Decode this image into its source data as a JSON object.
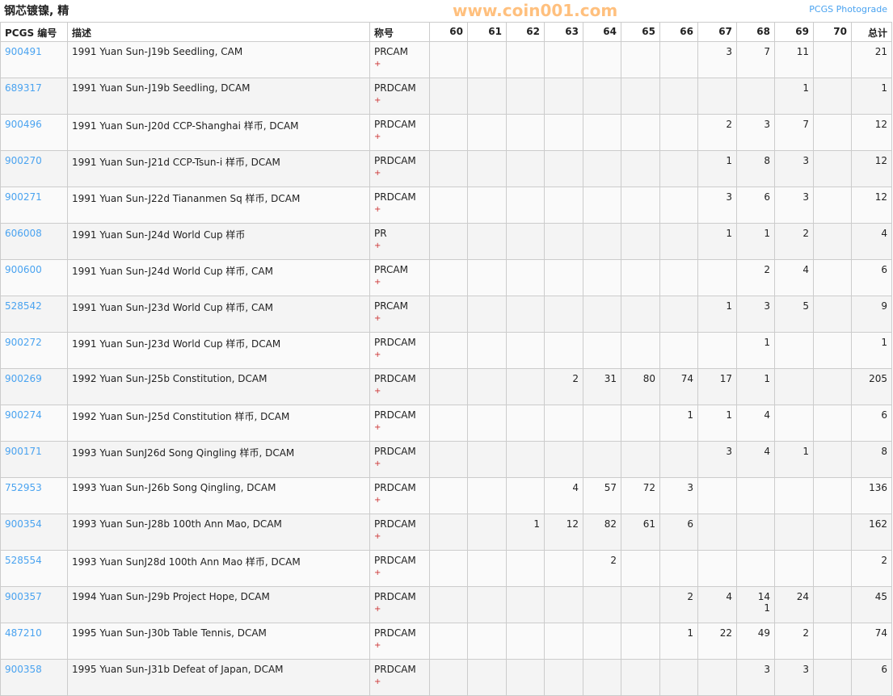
{
  "title": "钢芯镀镍, 精",
  "photograde_link": "PCGS Photograde",
  "headers": [
    "PCGS 编号",
    "描述",
    "称号",
    "60",
    "61",
    "62",
    "63",
    "64",
    "65",
    "66",
    "67",
    "68",
    "69",
    "70",
    "总计"
  ],
  "watermark": "www.coin001.com",
  "rows": [
    {
      "pcgs": "900491",
      "desc": "1991 Yuan Sun-J19b Seedling, CAM",
      "des": "PRCAM",
      "plus": "+",
      "g": [
        "",
        "",
        "",
        "",
        "",
        "",
        "",
        "3",
        "7",
        "11",
        ""
      ],
      "total": "21"
    },
    {
      "pcgs": "689317",
      "desc": "1991 Yuan Sun-J19b Seedling, DCAM",
      "des": "PRDCAM",
      "plus": "+",
      "g": [
        "",
        "",
        "",
        "",
        "",
        "",
        "",
        "",
        "",
        "1",
        ""
      ],
      "total": "1"
    },
    {
      "pcgs": "900496",
      "desc": "1991 Yuan Sun-J20d CCP-Shanghai 样币, DCAM",
      "des": "PRDCAM",
      "plus": "+",
      "g": [
        "",
        "",
        "",
        "",
        "",
        "",
        "",
        "2",
        "3",
        "7",
        ""
      ],
      "total": "12"
    },
    {
      "pcgs": "900270",
      "desc": "1991 Yuan Sun-J21d CCP-Tsun-i 样币, DCAM",
      "des": "PRDCAM",
      "plus": "+",
      "g": [
        "",
        "",
        "",
        "",
        "",
        "",
        "",
        "1",
        "8",
        "3",
        ""
      ],
      "total": "12"
    },
    {
      "pcgs": "900271",
      "desc": "1991 Yuan Sun-J22d Tiananmen Sq 样币, DCAM",
      "des": "PRDCAM",
      "plus": "+",
      "g": [
        "",
        "",
        "",
        "",
        "",
        "",
        "",
        "3",
        "6",
        "3",
        ""
      ],
      "total": "12"
    },
    {
      "pcgs": "606008",
      "desc": "1991 Yuan Sun-J24d World Cup 样币",
      "des": "PR",
      "plus": "+",
      "g": [
        "",
        "",
        "",
        "",
        "",
        "",
        "",
        "1",
        "1",
        "2",
        ""
      ],
      "total": "4"
    },
    {
      "pcgs": "900600",
      "desc": "1991 Yuan Sun-J24d World Cup 样币, CAM",
      "des": "PRCAM",
      "plus": "+",
      "g": [
        "",
        "",
        "",
        "",
        "",
        "",
        "",
        "",
        "2",
        "4",
        ""
      ],
      "total": "6"
    },
    {
      "pcgs": "528542",
      "desc": "1991 Yuan Sun-J23d World Cup 样币, CAM",
      "des": "PRCAM",
      "plus": "+",
      "g": [
        "",
        "",
        "",
        "",
        "",
        "",
        "",
        "1",
        "3",
        "5",
        ""
      ],
      "total": "9"
    },
    {
      "pcgs": "900272",
      "desc": "1991 Yuan Sun-J23d World Cup 样币, DCAM",
      "des": "PRDCAM",
      "plus": "+",
      "g": [
        "",
        "",
        "",
        "",
        "",
        "",
        "",
        "",
        "1",
        "",
        ""
      ],
      "total": "1"
    },
    {
      "pcgs": "900269",
      "desc": "1992 Yuan Sun-J25b Constitution, DCAM",
      "des": "PRDCAM",
      "plus": "+",
      "g": [
        "",
        "",
        "",
        "2",
        "31",
        "80",
        "74",
        "17",
        "1",
        "",
        ""
      ],
      "total": "205"
    },
    {
      "pcgs": "900274",
      "desc": "1992 Yuan Sun-J25d Constitution 样币, DCAM",
      "des": "PRDCAM",
      "plus": "+",
      "g": [
        "",
        "",
        "",
        "",
        "",
        "",
        "1",
        "1",
        "4",
        "",
        ""
      ],
      "total": "6"
    },
    {
      "pcgs": "900171",
      "desc": "1993 Yuan SunJ26d Song Qingling 样币, DCAM",
      "des": "PRDCAM",
      "plus": "+",
      "g": [
        "",
        "",
        "",
        "",
        "",
        "",
        "",
        "3",
        "4",
        "1",
        ""
      ],
      "total": "8"
    },
    {
      "pcgs": "752953",
      "desc": "1993 Yuan Sun-J26b Song Qingling, DCAM",
      "des": "PRDCAM",
      "plus": "+",
      "g": [
        "",
        "",
        "",
        "4",
        "57",
        "72",
        "3",
        "",
        "",
        "",
        ""
      ],
      "total": "136"
    },
    {
      "pcgs": "900354",
      "desc": "1993 Yuan Sun-J28b 100th Ann Mao, DCAM",
      "des": "PRDCAM",
      "plus": "+",
      "g": [
        "",
        "",
        "1",
        "12",
        "82",
        "61",
        "6",
        "",
        "",
        "",
        ""
      ],
      "total": "162"
    },
    {
      "pcgs": "528554",
      "desc": "1993 Yuan SunJ28d 100th Ann Mao 样币, DCAM",
      "des": "PRDCAM",
      "plus": "+",
      "g": [
        "",
        "",
        "",
        "",
        "2",
        "",
        "",
        "",
        "",
        "",
        ""
      ],
      "total": "2"
    },
    {
      "pcgs": "900357",
      "desc": "1994 Yuan Sun-J29b Project Hope, DCAM",
      "des": "PRDCAM",
      "plus": "+",
      "g": [
        "",
        "",
        "",
        "",
        "",
        "",
        "2",
        "4",
        "14",
        "24",
        ""
      ],
      "g_plus": {
        "8": "1"
      },
      "total": "45"
    },
    {
      "pcgs": "487210",
      "desc": "1995 Yuan Sun-J30b Table Tennis, DCAM",
      "des": "PRDCAM",
      "plus": "+",
      "g": [
        "",
        "",
        "",
        "",
        "",
        "",
        "1",
        "22",
        "49",
        "2",
        ""
      ],
      "total": "74"
    },
    {
      "pcgs": "900358",
      "desc": "1995 Yuan Sun-J31b Defeat of Japan, DCAM",
      "des": "PRDCAM",
      "plus": "+",
      "g": [
        "",
        "",
        "",
        "",
        "",
        "",
        "",
        "",
        "3",
        "3",
        ""
      ],
      "total": "6"
    }
  ]
}
